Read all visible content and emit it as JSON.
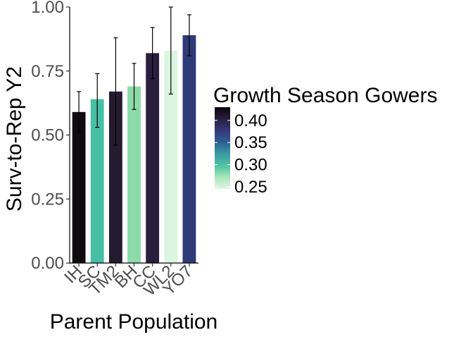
{
  "chart_data": {
    "type": "bar",
    "title": "",
    "xlabel": "Parent Population",
    "ylabel": "Surv-to-Rep Y2",
    "ylim": [
      0,
      1
    ],
    "yticks": [
      0.0,
      0.25,
      0.5,
      0.75,
      1.0
    ],
    "ytick_labels": [
      "0.00",
      "0.25",
      "0.50",
      "0.75",
      "1.00"
    ],
    "categories": [
      "IH",
      "SC",
      "TM2",
      "BH",
      "CC",
      "WL2",
      "YO7"
    ],
    "values": [
      0.59,
      0.64,
      0.67,
      0.69,
      0.82,
      0.83,
      0.89
    ],
    "error_low": [
      0.51,
      0.53,
      0.46,
      0.6,
      0.72,
      0.66,
      0.81
    ],
    "error_high": [
      0.67,
      0.74,
      0.88,
      0.78,
      0.92,
      1.0,
      0.97
    ],
    "fill_values": [
      0.43,
      0.29,
      0.42,
      0.27,
      0.4,
      0.25,
      0.36
    ],
    "bar_colors": [
      "#0f0b0f",
      "#47bfa5",
      "#241b2e",
      "#8ddba9",
      "#2a1e3e",
      "#daf5e0",
      "#2f3a78"
    ],
    "legend": {
      "title": "Growth Season Gowers",
      "placement": "right",
      "ticks": [
        0.4,
        0.35,
        0.3,
        0.25
      ],
      "tick_labels": [
        "0.40",
        "0.35",
        "0.30",
        "0.25"
      ],
      "range": [
        0.245,
        0.43
      ],
      "colors": [
        "#0a0509",
        "#2a1e3e",
        "#35377a",
        "#2d5f93",
        "#3b9aa3",
        "#4fc3a3",
        "#a8e6b8",
        "#e3f7e6"
      ]
    },
    "grid": false
  }
}
